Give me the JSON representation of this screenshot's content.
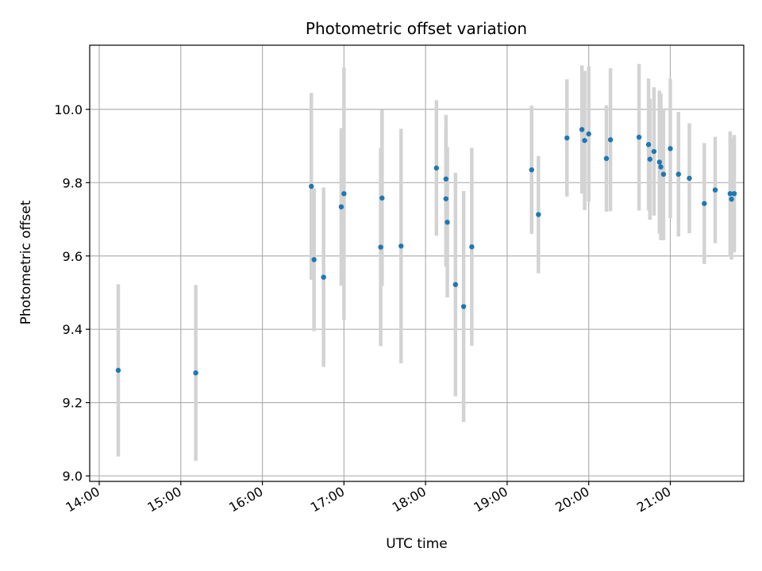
{
  "chart_data": {
    "type": "scatter",
    "title": "Photometric offset variation",
    "xlabel": "UTC time",
    "ylabel": "Photometric offset",
    "x_axis": "time",
    "xlim": [
      "13:53",
      "21:54"
    ],
    "ylim": [
      8.985,
      10.175
    ],
    "x_ticks": [
      "14:00",
      "15:00",
      "16:00",
      "17:00",
      "18:00",
      "19:00",
      "20:00",
      "21:00"
    ],
    "y_ticks": [
      "9.0",
      "9.2",
      "9.4",
      "9.6",
      "9.8",
      "10.0"
    ],
    "grid": true,
    "legend": "none",
    "colors": {
      "point": "#1f77b4",
      "errorbar": "#d3d3d3",
      "grid": "#b0b0b0"
    },
    "series": [
      {
        "x": [
          "14:14",
          "15:11",
          "16:36",
          "16:38",
          "16:45",
          "16:58",
          "17:00",
          "17:27",
          "17:28",
          "17:42",
          "18:08",
          "18:15",
          "18:15",
          "18:16",
          "18:22",
          "18:28",
          "18:34",
          "19:18",
          "19:23",
          "19:44",
          "19:55",
          "19:57",
          "20:00",
          "20:13",
          "20:16",
          "20:37",
          "20:44",
          "20:45",
          "20:48",
          "20:52",
          "20:53",
          "20:55",
          "21:00",
          "21:06",
          "21:14",
          "21:25",
          "21:33",
          "21:44",
          "21:45",
          "21:47"
        ],
        "y": [
          9.288,
          9.281,
          9.79,
          9.59,
          9.542,
          9.734,
          9.77,
          9.624,
          9.758,
          9.627,
          9.84,
          9.81,
          9.756,
          9.692,
          9.522,
          9.462,
          9.625,
          9.835,
          9.713,
          9.922,
          9.945,
          9.915,
          9.933,
          9.866,
          9.917,
          9.924,
          9.904,
          9.864,
          9.885,
          9.856,
          9.843,
          9.823,
          9.893,
          9.823,
          9.812,
          9.743,
          9.78,
          9.77,
          9.755,
          9.77
        ],
        "yerr": [
          0.235,
          0.24,
          0.255,
          0.195,
          0.245,
          0.215,
          0.345,
          0.27,
          0.24,
          0.32,
          0.185,
          0.175,
          0.185,
          0.205,
          0.305,
          0.315,
          0.27,
          0.175,
          0.16,
          0.16,
          0.175,
          0.19,
          0.185,
          0.145,
          0.195,
          0.2,
          0.18,
          0.165,
          0.175,
          0.195,
          0.2,
          0.18,
          0.19,
          0.17,
          0.15,
          0.165,
          0.145,
          0.17,
          0.165,
          0.16
        ]
      }
    ]
  }
}
